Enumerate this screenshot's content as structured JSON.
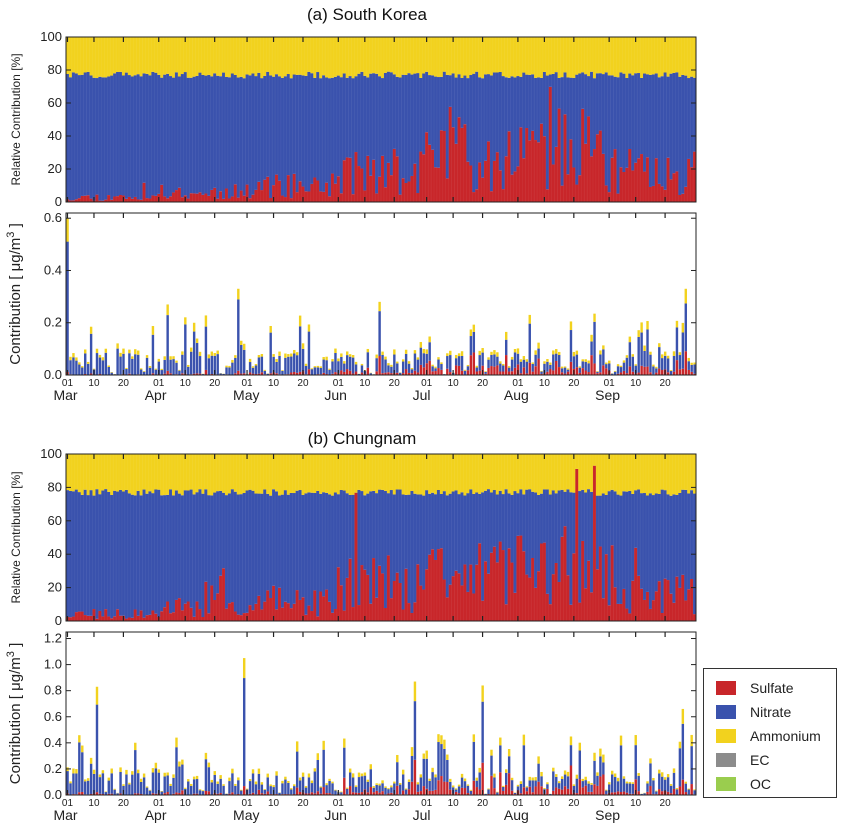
{
  "panels": [
    {
      "title": "(a) South Korea"
    },
    {
      "title": "(b) Chungnam"
    }
  ],
  "colors": {
    "Sulfate": "#c8262a",
    "Nitrate": "#3a52ad",
    "Ammonium": "#f2d21e",
    "EC": "#8c8c8c",
    "OC": "#9acd4e"
  },
  "legend": {
    "items": [
      {
        "label": "Sulfate",
        "color": "#c8262a"
      },
      {
        "label": "Nitrate",
        "color": "#3a52ad"
      },
      {
        "label": "Ammonium",
        "color": "#f2d21e"
      },
      {
        "label": "EC",
        "color": "#8c8c8c"
      },
      {
        "label": "OC",
        "color": "#9acd4e"
      }
    ]
  },
  "chart_data": [
    {
      "type": "bar",
      "stacked": true,
      "panel": "(a) South Korea",
      "ylabel": "Relative Contribution [%]",
      "ylim": [
        0,
        100
      ],
      "yticks": [
        0,
        20,
        40,
        60,
        80,
        100
      ],
      "x_day_ticks": [
        "01",
        "10",
        "20",
        "01",
        "10",
        "20",
        "01",
        "10",
        "20",
        "01",
        "10",
        "20",
        "01",
        "10",
        "20",
        "01",
        "10",
        "20",
        "01",
        "10",
        "20"
      ],
      "x_month_labels": [
        "Mar",
        "Apr",
        "May",
        "Jun",
        "Jul",
        "Aug",
        "Sep"
      ],
      "series": [
        {
          "name": "Sulfate",
          "monthly_typical_percent": [
            3,
            6,
            10,
            18,
            30,
            32,
            18
          ],
          "max_percent": 70
        },
        {
          "name": "Nitrate",
          "monthly_typical_percent": [
            74,
            71,
            67,
            59,
            47,
            45,
            59
          ]
        },
        {
          "name": "Ammonium",
          "monthly_typical_percent": [
            23,
            23,
            23,
            23,
            23,
            23,
            23
          ]
        }
      ]
    },
    {
      "type": "bar",
      "stacked": true,
      "panel": "(a) South Korea",
      "ylabel": "Contribution [ μg/m3 ]",
      "ylabel_main": "Contribution [ μg/m",
      "ylabel_sup": "3",
      "ylabel_end": " ]",
      "ylim": [
        0,
        0.62
      ],
      "yticks": [
        "0.0",
        "0.2",
        "0.4",
        "0.6"
      ],
      "x_day_ticks": [
        "01",
        "10",
        "20",
        "01",
        "10",
        "20",
        "01",
        "10",
        "20",
        "01",
        "10",
        "20",
        "01",
        "10",
        "20",
        "01",
        "10",
        "20",
        "01",
        "10",
        "20"
      ],
      "x_month_labels": [
        "Mar",
        "Apr",
        "May",
        "Jun",
        "Jul",
        "Aug",
        "Sep"
      ],
      "total_peaks": [
        {
          "date": "Mar-01",
          "value": 0.6
        },
        {
          "date": "Apr-28",
          "value": 0.33
        },
        {
          "date": "Apr-04",
          "value": 0.27
        },
        {
          "date": "Jun-15",
          "value": 0.28
        },
        {
          "date": "Sep-27",
          "value": 0.33
        },
        {
          "date": "Aug-05",
          "value": 0.23
        }
      ]
    },
    {
      "type": "bar",
      "stacked": true,
      "panel": "(b) Chungnam",
      "ylabel": "Relative Contribution [%]",
      "ylim": [
        0,
        100
      ],
      "yticks": [
        0,
        20,
        40,
        60,
        80,
        100
      ],
      "x_day_ticks": [
        "01",
        "10",
        "20",
        "01",
        "10",
        "20",
        "01",
        "10",
        "20",
        "01",
        "10",
        "20",
        "01",
        "10",
        "20",
        "01",
        "10",
        "20",
        "01",
        "10",
        "20"
      ],
      "x_month_labels": [
        "Mar",
        "Apr",
        "May",
        "Jun",
        "Jul",
        "Aug",
        "Sep"
      ],
      "series": [
        {
          "name": "Sulfate",
          "monthly_typical_percent": [
            4,
            8,
            12,
            22,
            28,
            30,
            16
          ],
          "max_percent": 93
        },
        {
          "name": "Nitrate",
          "monthly_typical_percent": [
            73,
            69,
            65,
            55,
            49,
            47,
            61
          ]
        },
        {
          "name": "Ammonium",
          "monthly_typical_percent": [
            23,
            23,
            23,
            23,
            23,
            23,
            23
          ]
        }
      ]
    },
    {
      "type": "bar",
      "stacked": true,
      "panel": "(b) Chungnam",
      "ylabel": "Contribution [ μg/m3 ]",
      "ylabel_main": "Contribution [ μg/m",
      "ylabel_sup": "3",
      "ylabel_end": " ]",
      "ylim": [
        0,
        1.25
      ],
      "yticks": [
        "0.0",
        "0.2",
        "0.4",
        "0.6",
        "0.8",
        "1.0",
        "1.2"
      ],
      "x_day_ticks": [
        "01",
        "10",
        "20",
        "01",
        "10",
        "20",
        "01",
        "10",
        "20",
        "01",
        "10",
        "20",
        "01",
        "10",
        "20",
        "01",
        "10",
        "20",
        "01",
        "10",
        "20"
      ],
      "x_month_labels": [
        "Mar",
        "Apr",
        "May",
        "Jun",
        "Jul",
        "Aug",
        "Sep"
      ],
      "total_peaks": [
        {
          "date": "Apr-30",
          "value": 1.05
        },
        {
          "date": "Jun-27",
          "value": 0.87
        },
        {
          "date": "Jul-20",
          "value": 0.84
        },
        {
          "date": "Mar-11",
          "value": 0.83
        },
        {
          "date": "Sep-26",
          "value": 0.66
        }
      ]
    }
  ]
}
